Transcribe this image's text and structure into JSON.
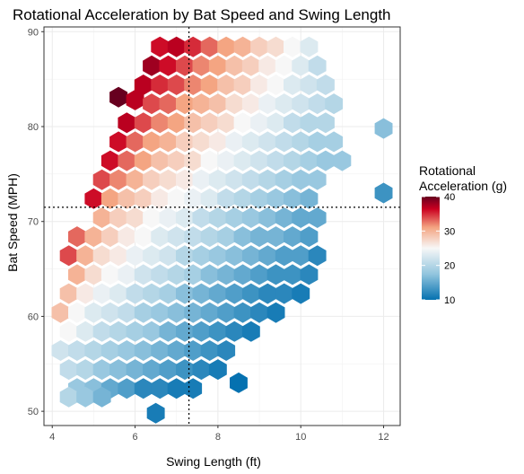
{
  "chart_data": {
    "type": "hexbin",
    "title": "Rotational Acceleration by Bat Speed and Swing Length",
    "xlabel": "Swing Length (ft)",
    "ylabel": "Bat Speed (MPH)",
    "xlim": [
      3.8,
      12.4
    ],
    "ylim": [
      48.5,
      90.5
    ],
    "x_ticks": [
      4,
      6,
      8,
      10,
      12
    ],
    "y_ticks": [
      50,
      60,
      70,
      80,
      90
    ],
    "grid": true,
    "reference_lines": {
      "x": 7.3,
      "y": 71.5
    },
    "hex_size": {
      "x": 0.4,
      "y": 2.0
    },
    "legend": {
      "title_lines": [
        "Rotational",
        "Acceleration (g)"
      ],
      "min": 10,
      "max": 40,
      "ticks": [
        10,
        20,
        30,
        40
      ],
      "placement": "right",
      "colors": [
        "#0571b0",
        "#92c5de",
        "#f7f7f7",
        "#f4a582",
        "#ca0020",
        "#67001f"
      ]
    },
    "points": [
      [
        6.6,
        88.4,
        36
      ],
      [
        7.0,
        88.4,
        37
      ],
      [
        7.4,
        88.4,
        35
      ],
      [
        7.8,
        88.4,
        33
      ],
      [
        8.2,
        88.4,
        31
      ],
      [
        8.6,
        88.4,
        30
      ],
      [
        9.0,
        88.4,
        28
      ],
      [
        9.4,
        88.4,
        27
      ],
      [
        9.8,
        88.4,
        25
      ],
      [
        10.2,
        88.4,
        23
      ],
      [
        6.4,
        86.4,
        38
      ],
      [
        6.8,
        86.4,
        36
      ],
      [
        7.2,
        86.4,
        34
      ],
      [
        7.6,
        86.4,
        32
      ],
      [
        8.0,
        86.4,
        31
      ],
      [
        8.4,
        86.4,
        29
      ],
      [
        8.8,
        86.4,
        28
      ],
      [
        9.2,
        86.4,
        26
      ],
      [
        9.6,
        86.4,
        25
      ],
      [
        10.0,
        86.4,
        23
      ],
      [
        10.4,
        86.4,
        21
      ],
      [
        6.2,
        84.4,
        37
      ],
      [
        6.6,
        84.4,
        35
      ],
      [
        7.0,
        84.4,
        34
      ],
      [
        7.4,
        84.4,
        32
      ],
      [
        7.8,
        84.4,
        31
      ],
      [
        8.2,
        84.4,
        29
      ],
      [
        8.6,
        84.4,
        28
      ],
      [
        9.0,
        84.4,
        26
      ],
      [
        9.4,
        84.4,
        25
      ],
      [
        9.8,
        84.4,
        23
      ],
      [
        10.2,
        84.4,
        22
      ],
      [
        10.6,
        84.4,
        21
      ],
      [
        5.6,
        83.1,
        40
      ],
      [
        6.0,
        82.8,
        37
      ],
      [
        6.4,
        82.4,
        34
      ],
      [
        6.8,
        82.4,
        33
      ],
      [
        7.2,
        82.4,
        31
      ],
      [
        7.6,
        82.4,
        30
      ],
      [
        8.0,
        82.4,
        29
      ],
      [
        8.4,
        82.4,
        27
      ],
      [
        8.8,
        82.4,
        26
      ],
      [
        9.2,
        82.4,
        24
      ],
      [
        9.6,
        82.4,
        23
      ],
      [
        10.0,
        82.4,
        22
      ],
      [
        10.4,
        82.4,
        21
      ],
      [
        10.8,
        82.4,
        20
      ],
      [
        5.8,
        80.4,
        37
      ],
      [
        6.2,
        80.4,
        34
      ],
      [
        6.6,
        80.4,
        32
      ],
      [
        7.0,
        80.4,
        31
      ],
      [
        7.4,
        80.4,
        29
      ],
      [
        7.8,
        80.4,
        28
      ],
      [
        8.2,
        80.4,
        27
      ],
      [
        8.6,
        80.4,
        25
      ],
      [
        9.0,
        80.4,
        24
      ],
      [
        9.4,
        80.4,
        23
      ],
      [
        9.8,
        80.4,
        21
      ],
      [
        10.2,
        80.4,
        20
      ],
      [
        10.6,
        80.4,
        20
      ],
      [
        5.6,
        78.4,
        36
      ],
      [
        6.0,
        78.4,
        33
      ],
      [
        6.4,
        78.4,
        31
      ],
      [
        6.8,
        78.4,
        30
      ],
      [
        7.2,
        78.4,
        28
      ],
      [
        7.6,
        78.4,
        27
      ],
      [
        8.0,
        78.4,
        26
      ],
      [
        8.4,
        78.4,
        24
      ],
      [
        8.8,
        78.4,
        23
      ],
      [
        9.2,
        78.4,
        22
      ],
      [
        9.6,
        78.4,
        21
      ],
      [
        10.0,
        78.4,
        20
      ],
      [
        10.4,
        78.4,
        19
      ],
      [
        10.8,
        78.4,
        19
      ],
      [
        5.4,
        76.4,
        36
      ],
      [
        5.8,
        76.4,
        33
      ],
      [
        6.2,
        76.4,
        31
      ],
      [
        6.6,
        76.4,
        29
      ],
      [
        7.0,
        76.4,
        28
      ],
      [
        7.4,
        76.4,
        27
      ],
      [
        7.8,
        76.4,
        25
      ],
      [
        8.2,
        76.4,
        24
      ],
      [
        8.6,
        76.4,
        23
      ],
      [
        9.0,
        76.4,
        22
      ],
      [
        9.4,
        76.4,
        21
      ],
      [
        9.8,
        76.4,
        20
      ],
      [
        10.2,
        76.4,
        19
      ],
      [
        10.6,
        76.4,
        18
      ],
      [
        11.0,
        76.4,
        18
      ],
      [
        5.2,
        74.4,
        34
      ],
      [
        5.6,
        74.4,
        32
      ],
      [
        6.0,
        74.4,
        30
      ],
      [
        6.4,
        74.4,
        28
      ],
      [
        6.8,
        74.4,
        27
      ],
      [
        7.2,
        74.4,
        26
      ],
      [
        7.6,
        74.4,
        24
      ],
      [
        8.0,
        74.4,
        23
      ],
      [
        8.4,
        74.4,
        22
      ],
      [
        8.8,
        74.4,
        21
      ],
      [
        9.2,
        74.4,
        20
      ],
      [
        9.6,
        74.4,
        19
      ],
      [
        10.0,
        74.4,
        18
      ],
      [
        10.4,
        74.4,
        18
      ],
      [
        5.0,
        72.4,
        36
      ],
      [
        5.4,
        72.4,
        31
      ],
      [
        5.8,
        72.4,
        29
      ],
      [
        6.2,
        72.4,
        28
      ],
      [
        6.6,
        72.4,
        26
      ],
      [
        7.0,
        72.4,
        25
      ],
      [
        7.4,
        72.4,
        24
      ],
      [
        7.8,
        72.4,
        23
      ],
      [
        8.2,
        72.4,
        21
      ],
      [
        8.6,
        72.4,
        20
      ],
      [
        9.0,
        72.4,
        19
      ],
      [
        9.4,
        72.4,
        18
      ],
      [
        9.8,
        72.4,
        17
      ],
      [
        10.2,
        72.4,
        16
      ],
      [
        5.2,
        70.4,
        30
      ],
      [
        5.6,
        70.4,
        28
      ],
      [
        6.0,
        70.4,
        27
      ],
      [
        6.4,
        70.4,
        25
      ],
      [
        6.8,
        70.4,
        24
      ],
      [
        7.2,
        70.4,
        23
      ],
      [
        7.6,
        70.4,
        21
      ],
      [
        8.0,
        70.4,
        20
      ],
      [
        8.4,
        70.4,
        19
      ],
      [
        8.8,
        70.4,
        18
      ],
      [
        9.2,
        70.4,
        17
      ],
      [
        9.6,
        70.4,
        16
      ],
      [
        10.0,
        70.4,
        15
      ],
      [
        10.4,
        70.4,
        15
      ],
      [
        4.6,
        68.4,
        33
      ],
      [
        5.0,
        68.4,
        30
      ],
      [
        5.4,
        68.4,
        28
      ],
      [
        5.8,
        68.4,
        26
      ],
      [
        6.2,
        68.4,
        25
      ],
      [
        6.6,
        68.4,
        23
      ],
      [
        7.0,
        68.4,
        22
      ],
      [
        7.4,
        68.4,
        21
      ],
      [
        7.8,
        68.4,
        20
      ],
      [
        8.2,
        68.4,
        19
      ],
      [
        8.6,
        68.4,
        17
      ],
      [
        9.0,
        68.4,
        16
      ],
      [
        9.4,
        68.4,
        16
      ],
      [
        9.8,
        68.4,
        15
      ],
      [
        10.2,
        68.4,
        14
      ],
      [
        4.4,
        66.4,
        34
      ],
      [
        4.8,
        66.4,
        30
      ],
      [
        5.2,
        66.4,
        27
      ],
      [
        5.6,
        66.4,
        26
      ],
      [
        6.0,
        66.4,
        24
      ],
      [
        6.4,
        66.4,
        23
      ],
      [
        6.8,
        66.4,
        22
      ],
      [
        7.2,
        66.4,
        20
      ],
      [
        7.6,
        66.4,
        19
      ],
      [
        8.0,
        66.4,
        18
      ],
      [
        8.4,
        66.4,
        17
      ],
      [
        8.8,
        66.4,
        16
      ],
      [
        9.2,
        66.4,
        15
      ],
      [
        9.6,
        66.4,
        14
      ],
      [
        10.0,
        66.4,
        14
      ],
      [
        10.4,
        66.4,
        12
      ],
      [
        4.6,
        64.4,
        30
      ],
      [
        5.0,
        64.4,
        27
      ],
      [
        5.4,
        64.4,
        25
      ],
      [
        5.8,
        64.4,
        24
      ],
      [
        6.2,
        64.4,
        22
      ],
      [
        6.6,
        64.4,
        21
      ],
      [
        7.0,
        64.4,
        20
      ],
      [
        7.4,
        64.4,
        19
      ],
      [
        7.8,
        64.4,
        17
      ],
      [
        8.2,
        64.4,
        16
      ],
      [
        8.6,
        64.4,
        15
      ],
      [
        9.0,
        64.4,
        14
      ],
      [
        9.4,
        64.4,
        13
      ],
      [
        9.8,
        64.4,
        13
      ],
      [
        10.2,
        64.4,
        12
      ],
      [
        4.4,
        62.4,
        29
      ],
      [
        4.8,
        62.4,
        26
      ],
      [
        5.2,
        62.4,
        24
      ],
      [
        5.6,
        62.4,
        23
      ],
      [
        6.0,
        62.4,
        21
      ],
      [
        6.4,
        62.4,
        20
      ],
      [
        6.8,
        62.4,
        19
      ],
      [
        7.2,
        62.4,
        17
      ],
      [
        7.6,
        62.4,
        16
      ],
      [
        8.0,
        62.4,
        15
      ],
      [
        8.4,
        62.4,
        14
      ],
      [
        8.8,
        62.4,
        13
      ],
      [
        9.2,
        62.4,
        12
      ],
      [
        9.6,
        62.4,
        12
      ],
      [
        10.0,
        62.4,
        11
      ],
      [
        4.2,
        60.4,
        29
      ],
      [
        4.6,
        60.4,
        25
      ],
      [
        5.0,
        60.4,
        23
      ],
      [
        5.4,
        60.4,
        22
      ],
      [
        5.8,
        60.4,
        21
      ],
      [
        6.2,
        60.4,
        19
      ],
      [
        6.6,
        60.4,
        18
      ],
      [
        7.0,
        60.4,
        17
      ],
      [
        7.4,
        60.4,
        16
      ],
      [
        7.8,
        60.4,
        15
      ],
      [
        8.2,
        60.4,
        14
      ],
      [
        8.6,
        60.4,
        13
      ],
      [
        9.0,
        60.4,
        12
      ],
      [
        9.4,
        60.4,
        11
      ],
      [
        4.4,
        58.4,
        25
      ],
      [
        4.8,
        58.4,
        23
      ],
      [
        5.2,
        58.4,
        21
      ],
      [
        5.6,
        58.4,
        20
      ],
      [
        6.0,
        58.4,
        19
      ],
      [
        6.4,
        58.4,
        18
      ],
      [
        6.8,
        58.4,
        16
      ],
      [
        7.2,
        58.4,
        15
      ],
      [
        7.6,
        58.4,
        14
      ],
      [
        8.0,
        58.4,
        13
      ],
      [
        8.4,
        58.4,
        12
      ],
      [
        8.8,
        58.4,
        11
      ],
      [
        4.2,
        56.4,
        22
      ],
      [
        4.6,
        56.4,
        21
      ],
      [
        5.0,
        56.4,
        20
      ],
      [
        5.4,
        56.4,
        19
      ],
      [
        5.8,
        56.4,
        18
      ],
      [
        6.2,
        56.4,
        17
      ],
      [
        6.6,
        56.4,
        16
      ],
      [
        7.0,
        56.4,
        15
      ],
      [
        7.4,
        56.4,
        14
      ],
      [
        7.8,
        56.4,
        13
      ],
      [
        8.2,
        56.4,
        12
      ],
      [
        4.4,
        54.4,
        21
      ],
      [
        4.8,
        54.4,
        20
      ],
      [
        5.2,
        54.4,
        18
      ],
      [
        5.6,
        54.4,
        17
      ],
      [
        6.0,
        54.4,
        16
      ],
      [
        6.4,
        54.4,
        15
      ],
      [
        6.8,
        54.4,
        14
      ],
      [
        7.2,
        54.4,
        13
      ],
      [
        7.6,
        54.4,
        12
      ],
      [
        8.0,
        54.4,
        11
      ],
      [
        4.6,
        52.4,
        18
      ],
      [
        5.0,
        52.4,
        17
      ],
      [
        5.4,
        52.4,
        15
      ],
      [
        5.8,
        52.4,
        14
      ],
      [
        6.2,
        52.4,
        12
      ],
      [
        6.6,
        52.4,
        12
      ],
      [
        7.0,
        52.4,
        11
      ],
      [
        7.4,
        52.4,
        11
      ],
      [
        4.4,
        51.5,
        20
      ],
      [
        4.8,
        51.5,
        18
      ],
      [
        5.2,
        51.5,
        16
      ],
      [
        8.5,
        53.0,
        10
      ],
      [
        6.5,
        49.8,
        11
      ],
      [
        12.0,
        79.8,
        17
      ],
      [
        12.0,
        73.0,
        13
      ]
    ]
  }
}
